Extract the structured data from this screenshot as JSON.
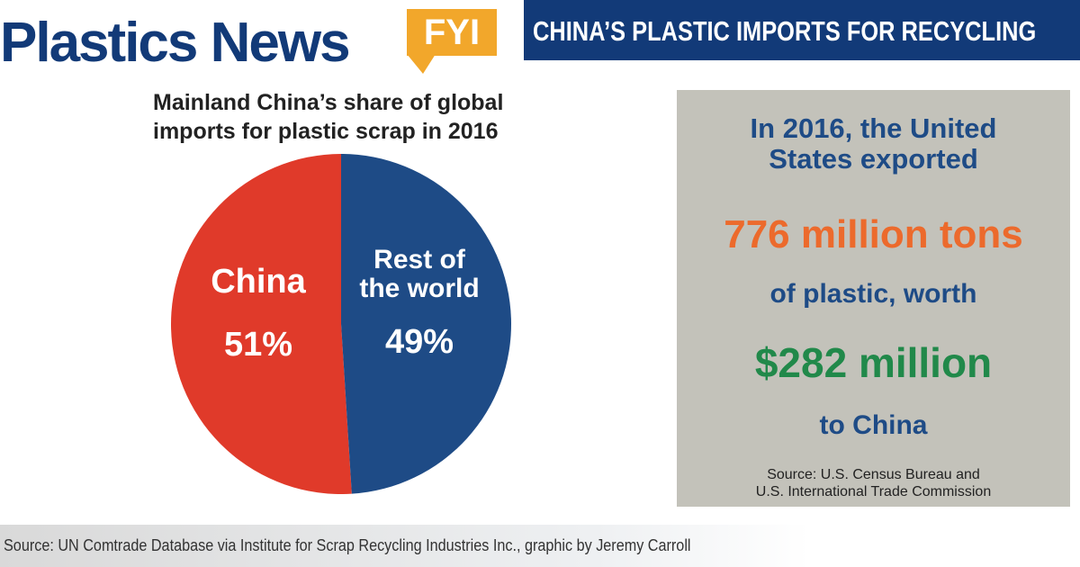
{
  "header": {
    "logo": "Plastics News",
    "logo_badge": "FYI",
    "banner": "CHINA’S PLASTIC IMPORTS FOR RECYCLING"
  },
  "chart_data": {
    "type": "pie",
    "title": "Mainland China’s share of global imports for plastic scrap in 2016",
    "title_lines": [
      "Mainland China’s share of global",
      "imports for plastic scrap in 2016"
    ],
    "slices": [
      {
        "label": "China",
        "label_lines": [
          "China"
        ],
        "value": 51,
        "display": "51%",
        "color": "#e03a2a"
      },
      {
        "label": "Rest of the world",
        "label_lines": [
          "Rest of",
          "the world"
        ],
        "value": 49,
        "display": "49%",
        "color": "#1e4b86"
      }
    ]
  },
  "panel": {
    "intro_lines": [
      "In 2016, the United",
      "States exported"
    ],
    "amount": "776 million tons",
    "middle": "of plastic, worth",
    "value": "$282 million",
    "ending": "to China",
    "source_lines": [
      "Source: U.S. Census Bureau and",
      "U.S. International Trade Commission"
    ],
    "colors": {
      "background": "#c3c2ba",
      "amount": "#ec6a2c",
      "value": "#21894a",
      "text": "#1e4b86"
    }
  },
  "footer": {
    "source": "Source: UN Comtrade Database via Institute for Scrap Recycling Industries Inc., graphic by Jeremy Carroll"
  }
}
